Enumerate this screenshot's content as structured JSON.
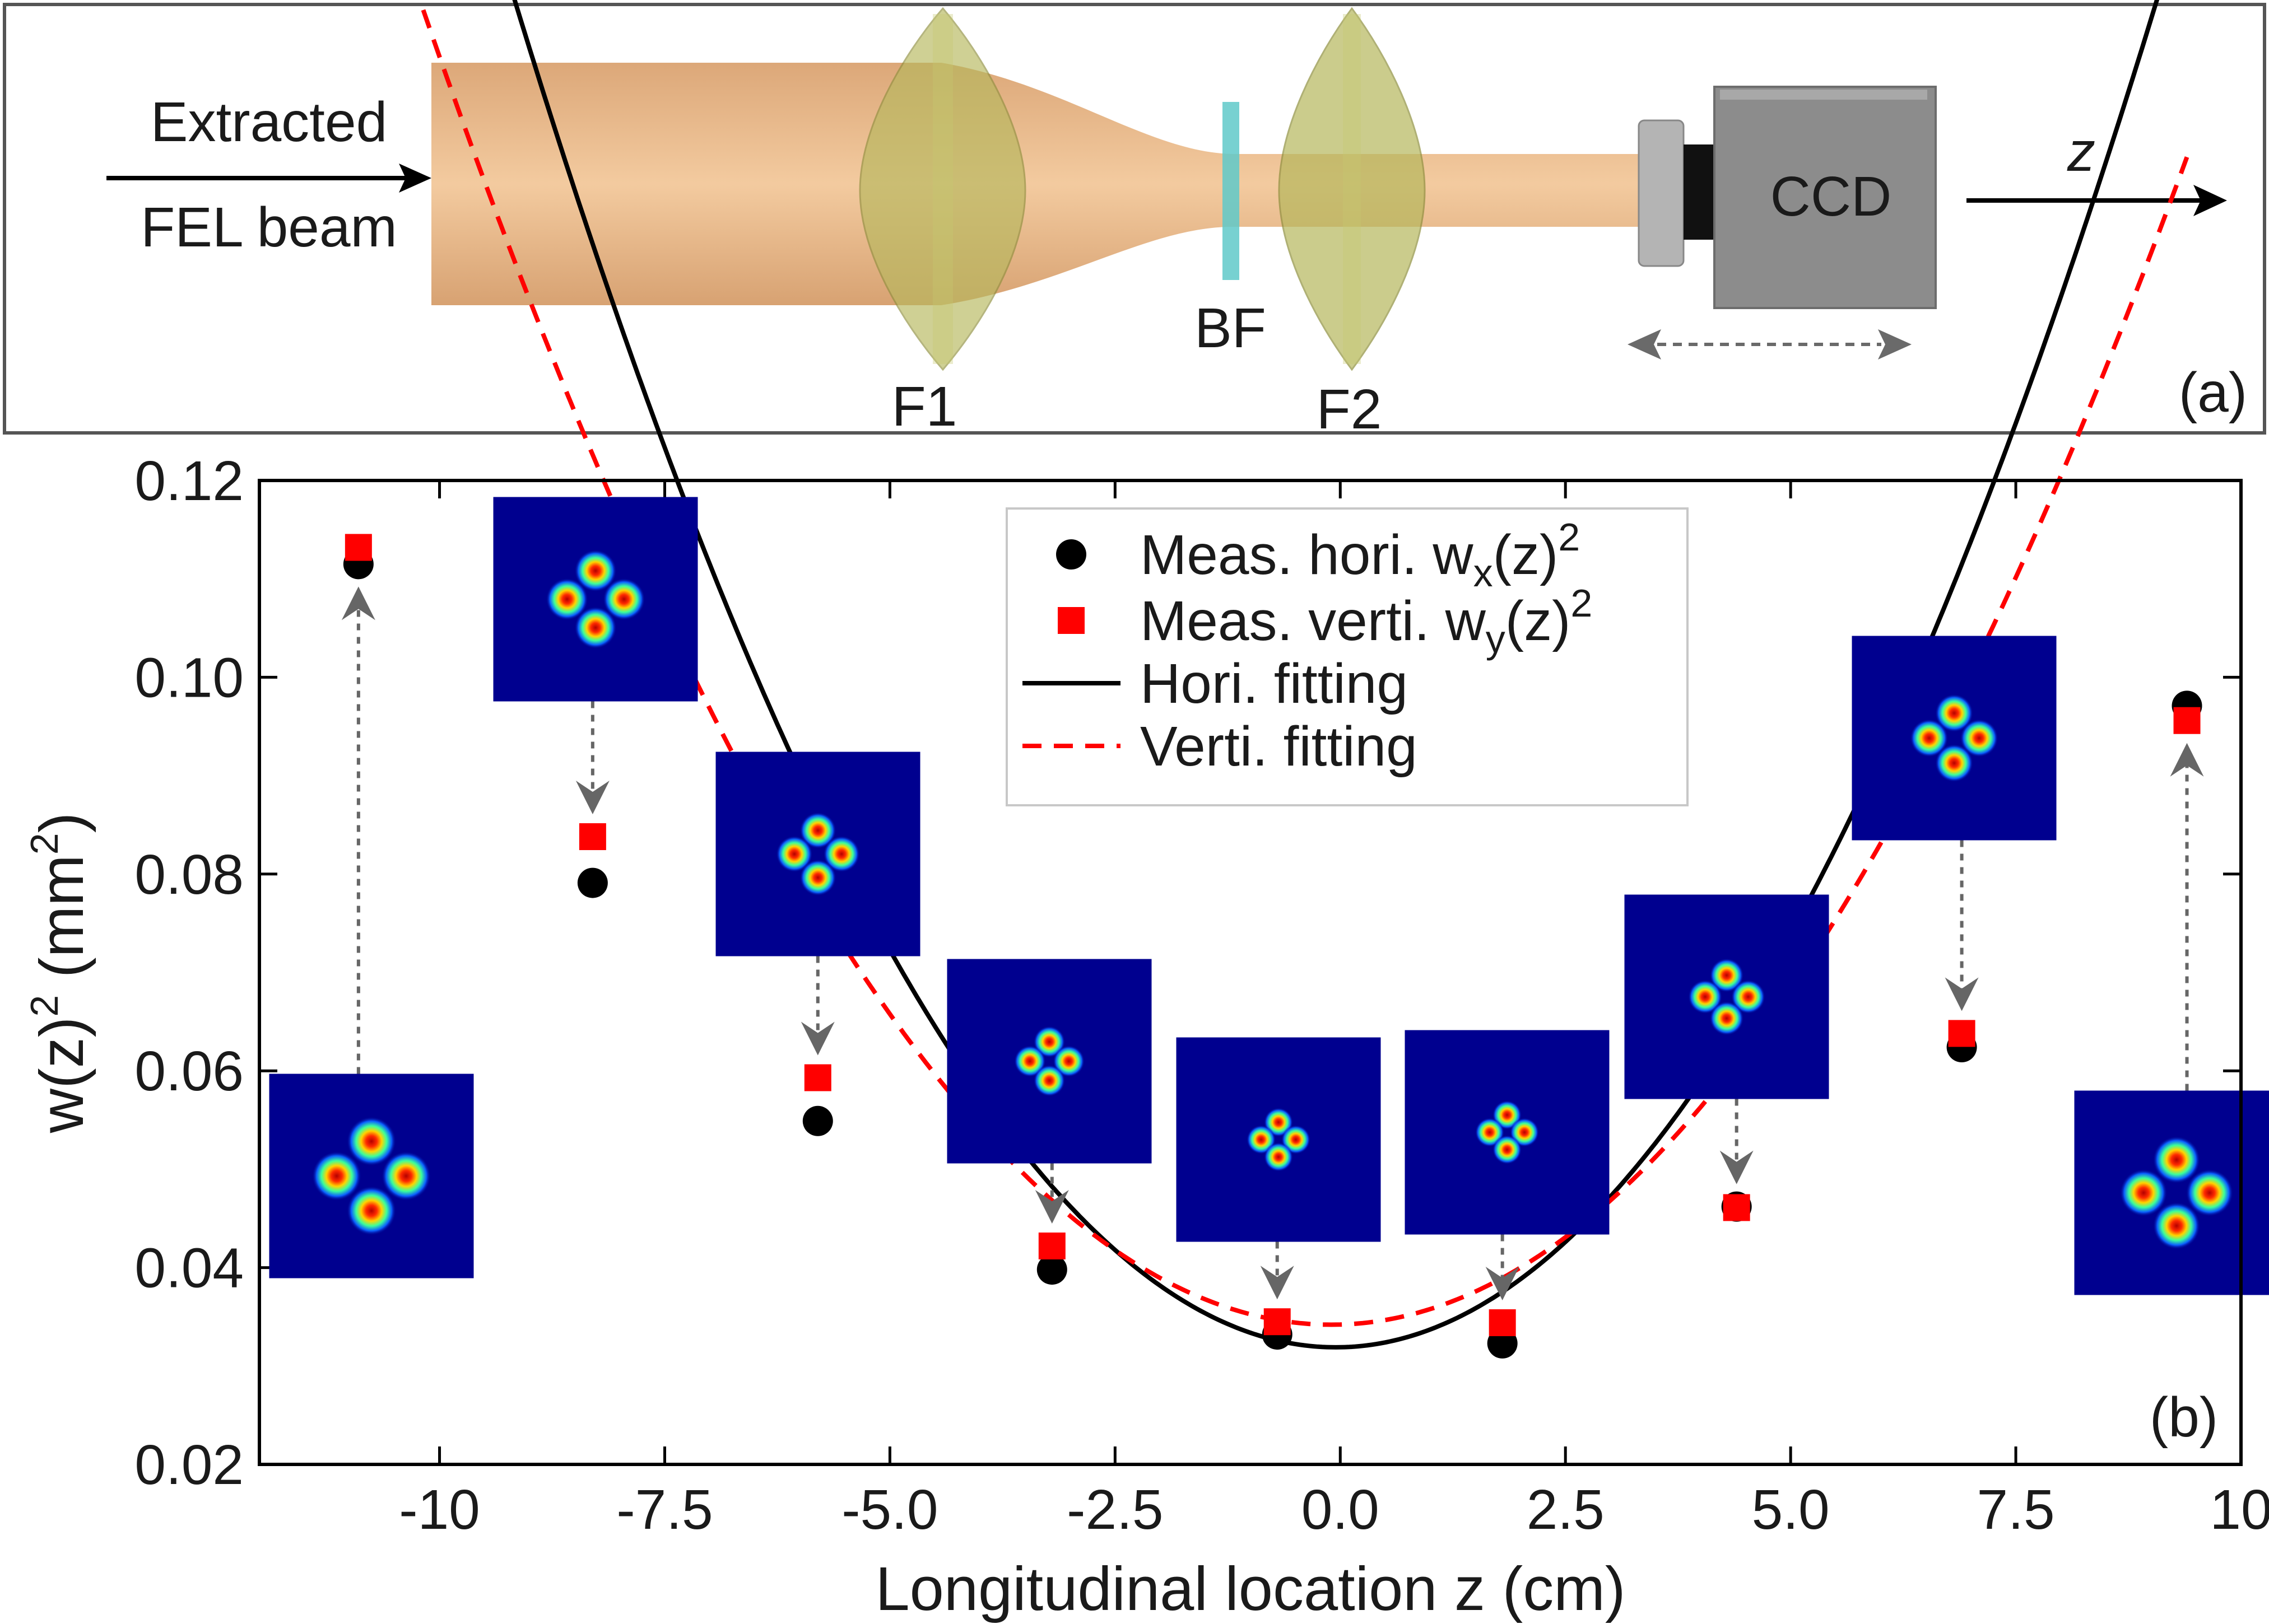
{
  "panel_a": {
    "label": "(a)",
    "source_label_line1": "Extracted",
    "source_label_line2": "FEL beam",
    "lens1_label": "F1",
    "filter_label": "BF",
    "lens2_label": "F2",
    "detector_label": "CCD",
    "axis_label": "z"
  },
  "colors": {
    "beam": "#e6ae7c",
    "lens": "#b3b45a",
    "filter": "#5fc9c9",
    "ccd_body": "#8c8c8c",
    "ccd_sensor": "#111111",
    "hori": "#000000",
    "verti": "#ff0000",
    "profile_bg": "#00008f",
    "arrow": "#666666"
  },
  "chart_data": {
    "type": "scatter",
    "panel_label": "(b)",
    "xlabel": "Longitudinal location z (cm)",
    "ylabel_main": "w(z)",
    "ylabel_sup1": "2",
    "ylabel_unit": " (mm",
    "ylabel_sup2": "2",
    "ylabel_close": ")",
    "xlim": [
      -12,
      10
    ],
    "ylim": [
      0.02,
      0.12
    ],
    "xticks": [
      -10,
      -7.5,
      -5.0,
      -2.5,
      0.0,
      2.5,
      5.0,
      7.5,
      10
    ],
    "xtick_labels": [
      "-10",
      "-7.5",
      "-5.0",
      "-2.5",
      "0.0",
      "2.5",
      "5.0",
      "7.5",
      "10"
    ],
    "yticks": [
      0.02,
      0.04,
      0.06,
      0.08,
      0.1,
      0.12
    ],
    "ytick_labels": [
      "0.02",
      "0.04",
      "0.06",
      "0.08",
      "0.10",
      "0.12"
    ],
    "grid": false,
    "legend": {
      "position": "top-center",
      "entries": [
        {
          "main": "Meas. hori. w",
          "sub": "x",
          "tail": "(z)",
          "sup": "2"
        },
        {
          "main": "Meas. verti. w",
          "sub": "y",
          "tail": "(z)",
          "sup": "2"
        },
        {
          "main": "Hori. fitting",
          "sub": "",
          "tail": "",
          "sup": ""
        },
        {
          "main": "Verti. fitting",
          "sub": "",
          "tail": "",
          "sup": ""
        }
      ]
    },
    "series": [
      {
        "name": "Meas. hori. wx(z)^2",
        "marker": "circle",
        "x": [
          -10.9,
          -8.3,
          -5.8,
          -3.2,
          -0.7,
          1.8,
          4.4,
          6.9,
          9.4
        ],
        "y": [
          0.1115,
          0.0791,
          0.0549,
          0.0398,
          0.0332,
          0.0323,
          0.0462,
          0.0624,
          0.0971
        ]
      },
      {
        "name": "Meas. verti. wy(z)^2",
        "marker": "square",
        "x": [
          -10.9,
          -8.3,
          -5.8,
          -3.2,
          -0.7,
          1.8,
          4.4,
          6.9,
          9.4
        ],
        "y": [
          0.1132,
          0.0838,
          0.0593,
          0.0422,
          0.0345,
          0.0344,
          0.0461,
          0.0638,
          0.0956
        ]
      },
      {
        "name": "Hori. fitting",
        "style": "solid",
        "curve": {
          "w0sq": 0.0319,
          "z0": -0.05,
          "zr": 4.4
        }
      },
      {
        "name": "Verti. fitting",
        "style": "dashed",
        "curve": {
          "w0sq": 0.0342,
          "z0": -0.1,
          "zr": 5.1
        }
      }
    ],
    "profiles": [
      {
        "z": -10.9,
        "spread": 1.0
      },
      {
        "z": -8.3,
        "spread": 0.82
      },
      {
        "z": -5.8,
        "spread": 0.68
      },
      {
        "z": -3.2,
        "spread": 0.56
      },
      {
        "z": -0.7,
        "spread": 0.5
      },
      {
        "z": 1.8,
        "spread": 0.5
      },
      {
        "z": 4.4,
        "spread": 0.62
      },
      {
        "z": 6.9,
        "spread": 0.72
      },
      {
        "z": 9.4,
        "spread": 0.95
      }
    ]
  }
}
